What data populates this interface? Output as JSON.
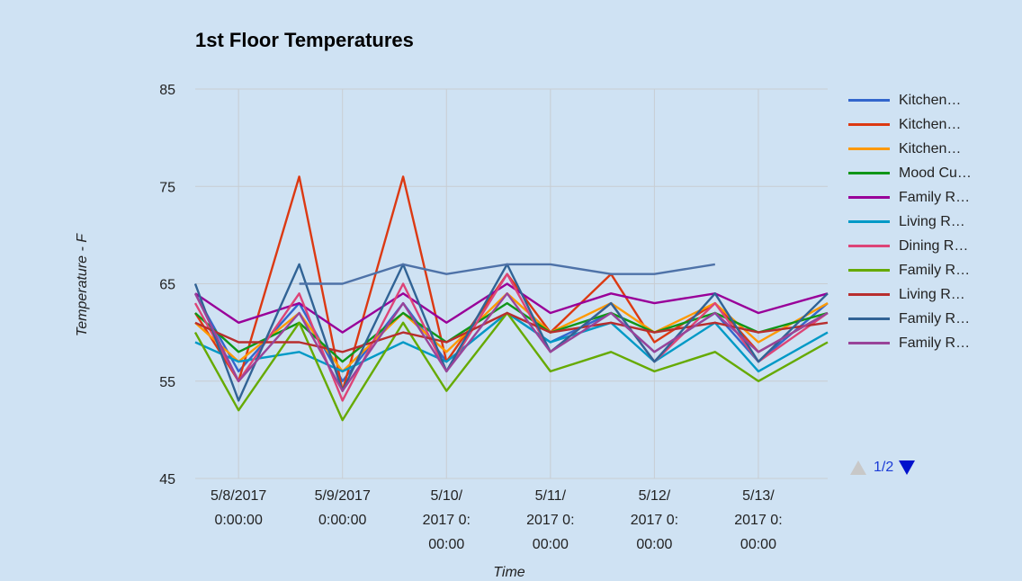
{
  "chart_data": {
    "type": "line",
    "title": "1st Floor Temperatures",
    "xlabel": "Time",
    "ylabel": "Temperature - F",
    "ylim": [
      45,
      85
    ],
    "yticks": [
      45,
      55,
      65,
      75,
      85
    ],
    "xlim": [
      "5/7/2017 14:00",
      "5/13/2017 16:00"
    ],
    "x": [
      "5/7/2017 14:00",
      "5/8/2017 0:00",
      "5/8/2017 14:00",
      "5/9/2017 0:00",
      "5/9/2017 14:00",
      "5/10/2017 0:00",
      "5/10/2017 14:00",
      "5/11/2017 0:00",
      "5/11/2017 14:00",
      "5/12/2017 0:00",
      "5/12/2017 14:00",
      "5/13/2017 0:00",
      "5/13/2017 16:00"
    ],
    "xticks": [
      {
        "date": "5/8/2017 0:00",
        "lines": [
          "5/8/2017",
          "0:00:00"
        ]
      },
      {
        "date": "5/9/2017 0:00",
        "lines": [
          "5/9/2017",
          "0:00:00"
        ]
      },
      {
        "date": "5/10/2017 0:00",
        "lines": [
          "5/10/",
          "2017 0:",
          "00:00"
        ]
      },
      {
        "date": "5/11/2017 0:00",
        "lines": [
          "5/11/",
          "2017 0:",
          "00:00"
        ]
      },
      {
        "date": "5/12/2017 0:00",
        "lines": [
          "5/12/",
          "2017 0:",
          "00:00"
        ]
      },
      {
        "date": "5/13/2017 0:00",
        "lines": [
          "5/13/",
          "2017 0:",
          "00:00"
        ]
      }
    ],
    "grid": true,
    "legend_position": "right",
    "series": [
      {
        "name": "Kitchen…",
        "color": "#3366cc",
        "values": [
          64,
          56,
          63,
          55,
          63,
          57,
          62,
          59,
          62,
          58,
          62,
          57,
          63
        ]
      },
      {
        "name": "Kitchen…",
        "color": "#dc3912",
        "values": [
          62,
          55,
          76,
          54,
          76,
          57,
          66,
          60,
          66,
          59,
          63,
          58,
          62
        ]
      },
      {
        "name": "Kitchen…",
        "color": "#ff9900",
        "values": [
          61,
          57,
          62,
          56,
          62,
          58,
          64,
          60,
          63,
          60,
          63,
          59,
          63
        ]
      },
      {
        "name": "Mood Cu…",
        "color": "#109618",
        "values": [
          62,
          58,
          61,
          57,
          62,
          59,
          63,
          60,
          62,
          60,
          62,
          60,
          62
        ]
      },
      {
        "name": "Family R…",
        "color": "#990099",
        "values": [
          64,
          61,
          63,
          60,
          64,
          61,
          65,
          62,
          64,
          63,
          64,
          62,
          64
        ]
      },
      {
        "name": "Living R…",
        "color": "#0099c6",
        "values": [
          59,
          57,
          58,
          56,
          59,
          57,
          62,
          59,
          61,
          57,
          61,
          56,
          60
        ]
      },
      {
        "name": "Dining R…",
        "color": "#dd4477",
        "values": [
          63,
          55,
          64,
          53,
          65,
          56,
          66,
          58,
          63,
          57,
          63,
          57,
          62
        ]
      },
      {
        "name": "Family R…",
        "color": "#66aa00",
        "values": [
          60,
          52,
          61,
          51,
          61,
          54,
          62,
          56,
          58,
          56,
          58,
          55,
          59
        ]
      },
      {
        "name": "Living R…",
        "color": "#b82e2e",
        "values": [
          61,
          59,
          59,
          58,
          60,
          59,
          62,
          60,
          61,
          60,
          61,
          60,
          61
        ]
      },
      {
        "name": "Family R…",
        "color": "#316395",
        "values": [
          65,
          53,
          67,
          54,
          67,
          56,
          67,
          58,
          63,
          57,
          64,
          57,
          64
        ]
      },
      {
        "name": "Family R…",
        "color": "#994499",
        "values": [
          64,
          55,
          62,
          54,
          63,
          56,
          64,
          58,
          62,
          58,
          62,
          58,
          62
        ]
      },
      {
        "name": "",
        "color": "#4e72a8",
        "values": [
          null,
          null,
          65,
          65,
          67,
          66,
          67,
          67,
          66,
          66,
          67,
          null,
          null
        ]
      }
    ]
  },
  "legend": {
    "pager_text": "1/2"
  }
}
